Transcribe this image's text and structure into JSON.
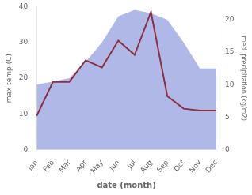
{
  "chart_data": {
    "type": "line",
    "xlabel": "date (month)",
    "ylabel": "max temp (C)",
    "y2label": "med. precipitation (kg/m2)",
    "categories": [
      "Jan",
      "Feb",
      "Mar",
      "Apr",
      "May",
      "Jun",
      "Jul",
      "Aug",
      "Sep",
      "Oct",
      "Nov",
      "Dec"
    ],
    "series": [
      {
        "type": "area",
        "axis": "y2",
        "color": "#b0b8e8",
        "values": [
          10.0,
          10.5,
          11.0,
          13.5,
          16.5,
          20.5,
          21.5,
          21.0,
          20.0,
          16.5,
          12.5,
          12.5
        ]
      },
      {
        "type": "line",
        "color": "#8B3040",
        "values": [
          9.5,
          19.0,
          19.0,
          25.0,
          23.0,
          30.5,
          26.5,
          38.5,
          15.0,
          11.5,
          11.0,
          11.0
        ]
      }
    ],
    "ylim": [
      0,
      40
    ],
    "yticks": [
      0,
      10,
      20,
      30,
      40
    ],
    "y2lim": [
      0,
      22
    ],
    "y2ticks": [
      0,
      5,
      10,
      15,
      20
    ],
    "grid": false
  }
}
